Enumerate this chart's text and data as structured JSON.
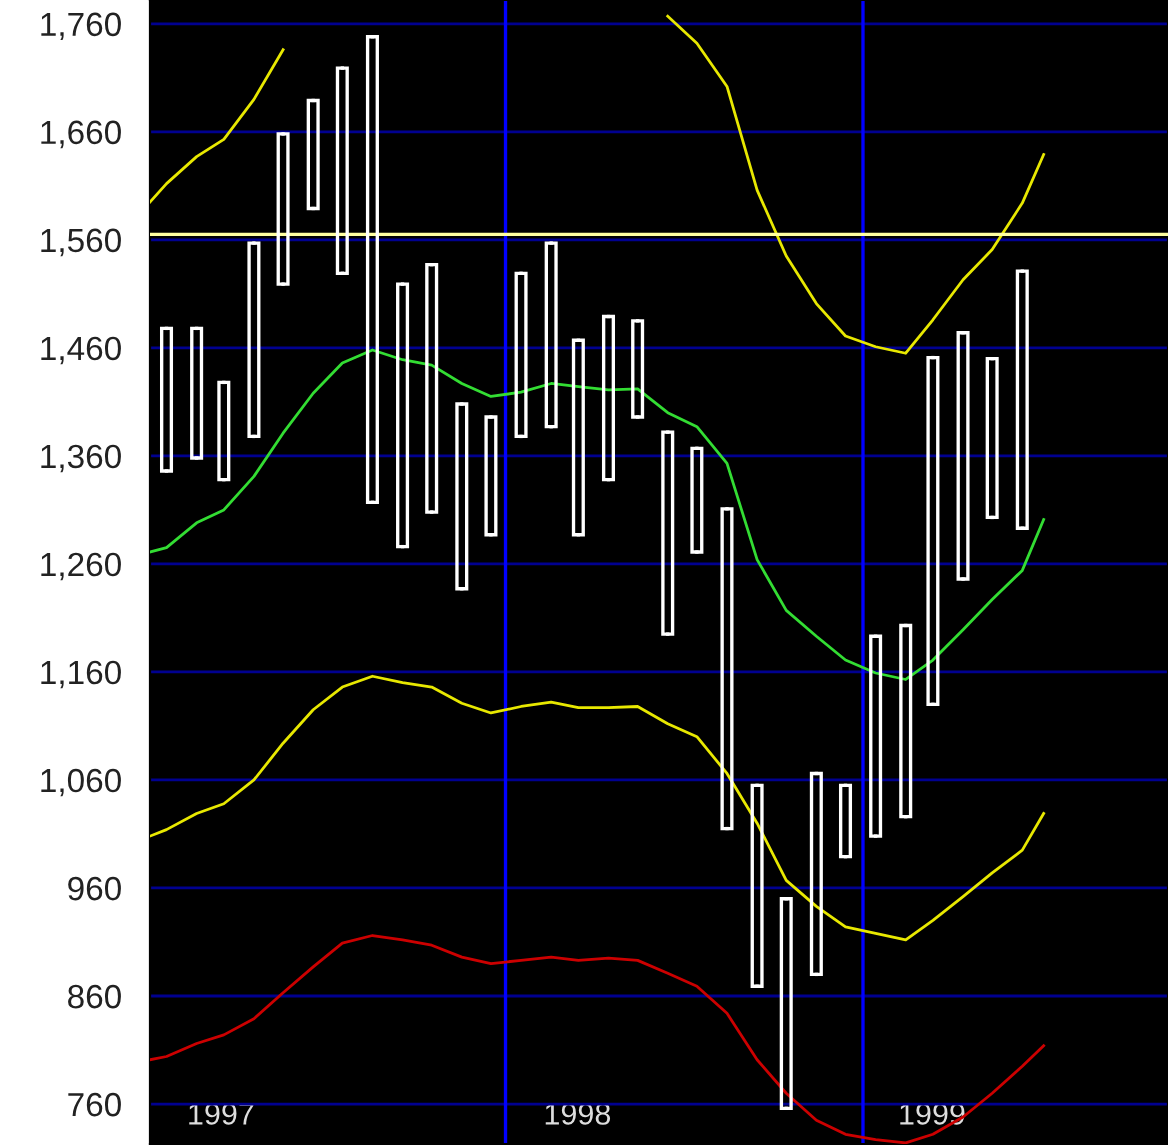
{
  "chart_data": {
    "type": "candlestick",
    "x": [
      "1997-01",
      "1997-02",
      "1997-03",
      "1997-04",
      "1997-05",
      "1997-06",
      "1997-07",
      "1997-08",
      "1997-09",
      "1997-10",
      "1997-11",
      "1997-12",
      "1998-01",
      "1998-02",
      "1998-03",
      "1998-04",
      "1998-05",
      "1998-06",
      "1998-07",
      "1998-08",
      "1998-09",
      "1998-10",
      "1998-11",
      "1998-12",
      "1999-01",
      "1999-02",
      "1999-03",
      "1999-04",
      "1999-05",
      "1999-06"
    ],
    "ohlc": [
      [
        1346,
        1478,
        1346,
        1478
      ],
      [
        1358,
        1478,
        1358,
        1478
      ],
      [
        1338,
        1428,
        1338,
        1428
      ],
      [
        1378,
        1557,
        1378,
        1557
      ],
      [
        1519,
        1658,
        1519,
        1658
      ],
      [
        1589,
        1689,
        1589,
        1689
      ],
      [
        1529,
        1719,
        1529,
        1719
      ],
      [
        1317,
        1748,
        1317,
        1748
      ],
      [
        1276,
        1519,
        1276,
        1519
      ],
      [
        1308,
        1537,
        1308,
        1537
      ],
      [
        1237,
        1408,
        1237,
        1408
      ],
      [
        1287,
        1396,
        1287,
        1396
      ],
      [
        1378,
        1529,
        1378,
        1529
      ],
      [
        1387,
        1557,
        1387,
        1557
      ],
      [
        1287,
        1467,
        1287,
        1467
      ],
      [
        1338,
        1489,
        1338,
        1489
      ],
      [
        1396,
        1485,
        1396,
        1485
      ],
      [
        1195,
        1382,
        1195,
        1382
      ],
      [
        1271,
        1367,
        1271,
        1367
      ],
      [
        1015,
        1311,
        1015,
        1311
      ],
      [
        869,
        1055,
        869,
        1055
      ],
      [
        756,
        950,
        756,
        950
      ],
      [
        880,
        1066,
        880,
        1066
      ],
      [
        989,
        1055,
        989,
        1055
      ],
      [
        1008,
        1193,
        1008,
        1193
      ],
      [
        1026,
        1203,
        1026,
        1203
      ],
      [
        1130,
        1451,
        1130,
        1451
      ],
      [
        1246,
        1474,
        1246,
        1474
      ],
      [
        1303,
        1450,
        1303,
        1450
      ],
      [
        1293,
        1531,
        1293,
        1531
      ]
    ],
    "color": "#ffffff",
    "series": [
      {
        "type": "line",
        "color": "#e8e800",
        "x": [
          "1996-12-15",
          "1997-01",
          "1997-02",
          "1997-03",
          "1997-04",
          "1997-05",
          "1997-06",
          "1997-07",
          "1997-08",
          "1997-09",
          "1997-10",
          "1997-11",
          "1997-12",
          "1998-01",
          "1998-02",
          "1998-03",
          "1998-04",
          "1998-05",
          "1998-06",
          "1998-07",
          "1998-08",
          "1998-09",
          "1998-10",
          "1998-11",
          "1998-12",
          "1999-01",
          "1999-02",
          "1999-03",
          "1999-04",
          "1999-05",
          "1999-06",
          "1999-06-23"
        ],
        "values": [
          1595,
          1612,
          1637,
          1653,
          1690,
          1736,
          null,
          null,
          null,
          null,
          null,
          null,
          null,
          null,
          null,
          null,
          null,
          null,
          1767,
          1742,
          1702,
          1606,
          1545,
          1501,
          1471,
          1461,
          1455,
          1486,
          1523,
          1551,
          1594,
          1639
        ]
      },
      {
        "type": "line",
        "color": "#33dd33",
        "x": [
          "1996-12-15",
          "1997-01",
          "1997-02",
          "1997-03",
          "1997-04",
          "1997-05",
          "1997-06",
          "1997-07",
          "1997-08",
          "1997-09",
          "1997-10",
          "1997-11",
          "1997-12",
          "1998-01",
          "1998-02",
          "1998-03",
          "1998-04",
          "1998-05",
          "1998-06",
          "1998-07",
          "1998-08",
          "1998-09",
          "1998-10",
          "1998-11",
          "1998-12",
          "1999-01",
          "1999-02",
          "1999-03",
          "1999-04",
          "1999-05",
          "1999-06",
          "1999-06-23"
        ],
        "values": [
          1271,
          1275,
          1298,
          1310,
          1341,
          1381,
          1418,
          1446,
          1458,
          1449,
          1444,
          1427,
          1415,
          1419,
          1427,
          1424,
          1421,
          1422,
          1400,
          1387,
          1353,
          1264,
          1217,
          1193,
          1171,
          1159,
          1153,
          1171,
          1199,
          1227,
          1254,
          1301
        ]
      },
      {
        "type": "line",
        "color": "#e8e800",
        "x": [
          "1996-12-15",
          "1997-01",
          "1997-02",
          "1997-03",
          "1997-04",
          "1997-05",
          "1997-06",
          "1997-07",
          "1997-08",
          "1997-09",
          "1997-10",
          "1997-11",
          "1997-12",
          "1998-01",
          "1998-02",
          "1998-03",
          "1998-04",
          "1998-05",
          "1998-06",
          "1998-07",
          "1998-08",
          "1998-09",
          "1998-10",
          "1998-11",
          "1998-12",
          "1999-01",
          "1999-02",
          "1999-03",
          "1999-04",
          "1999-05",
          "1999-06",
          "1999-06-23"
        ],
        "values": [
          1008,
          1014,
          1029,
          1038,
          1060,
          1094,
          1125,
          1146,
          1156,
          1150,
          1146,
          1131,
          1122,
          1128,
          1132,
          1127,
          1127,
          1128,
          1112,
          1100,
          1066,
          1020,
          967,
          943,
          924,
          918,
          912,
          930,
          952,
          974,
          995,
          1029
        ]
      },
      {
        "type": "line",
        "color": "#cc0000",
        "x": [
          "1996-12-15",
          "1997-01",
          "1997-02",
          "1997-03",
          "1997-04",
          "1997-05",
          "1997-06",
          "1997-07",
          "1997-08",
          "1997-09",
          "1997-10",
          "1997-11",
          "1997-12",
          "1998-01",
          "1998-02",
          "1998-03",
          "1998-04",
          "1998-05",
          "1998-06",
          "1998-07",
          "1998-08",
          "1998-09",
          "1998-10",
          "1998-11",
          "1998-12",
          "1999-01",
          "1999-02",
          "1999-03",
          "1999-04",
          "1999-05",
          "1999-06",
          "1999-06-23"
        ],
        "values": [
          801,
          804,
          816,
          824,
          839,
          863,
          887,
          909,
          916,
          912,
          907,
          896,
          890,
          893,
          896,
          893,
          895,
          893,
          881,
          869,
          844,
          801,
          770,
          745,
          732,
          727,
          724,
          732,
          748,
          770,
          795,
          814
        ]
      }
    ],
    "ref_lines": [
      {
        "axis": "y",
        "value": 1565,
        "color": "#ffffa0"
      },
      {
        "axis": "x",
        "value": "1997-12-16",
        "color": "#0000ff"
      },
      {
        "axis": "x",
        "value": "1998-12-19",
        "color": "#0000ff"
      }
    ],
    "xlim": [
      "1996-12-15",
      "1999-10-29"
    ],
    "xticks": [
      {
        "value": "1997-02-26",
        "label": "1997"
      },
      {
        "value": "1998-02-28",
        "label": "1998"
      },
      {
        "value": "1999-02-28",
        "label": "1999"
      }
    ],
    "ylim": [
      723,
      1782
    ],
    "yticks": [
      {
        "value": 760,
        "label": "760"
      },
      {
        "value": 860,
        "label": "860"
      },
      {
        "value": 960,
        "label": "960"
      },
      {
        "value": 1060,
        "label": "1,060"
      },
      {
        "value": 1160,
        "label": "1,160"
      },
      {
        "value": 1260,
        "label": "1,260"
      },
      {
        "value": 1360,
        "label": "1,360"
      },
      {
        "value": 1460,
        "label": "1,460"
      },
      {
        "value": 1560,
        "label": "1,560"
      },
      {
        "value": 1660,
        "label": "1,660"
      },
      {
        "value": 1760,
        "label": "1,760"
      }
    ],
    "grid": "y"
  }
}
